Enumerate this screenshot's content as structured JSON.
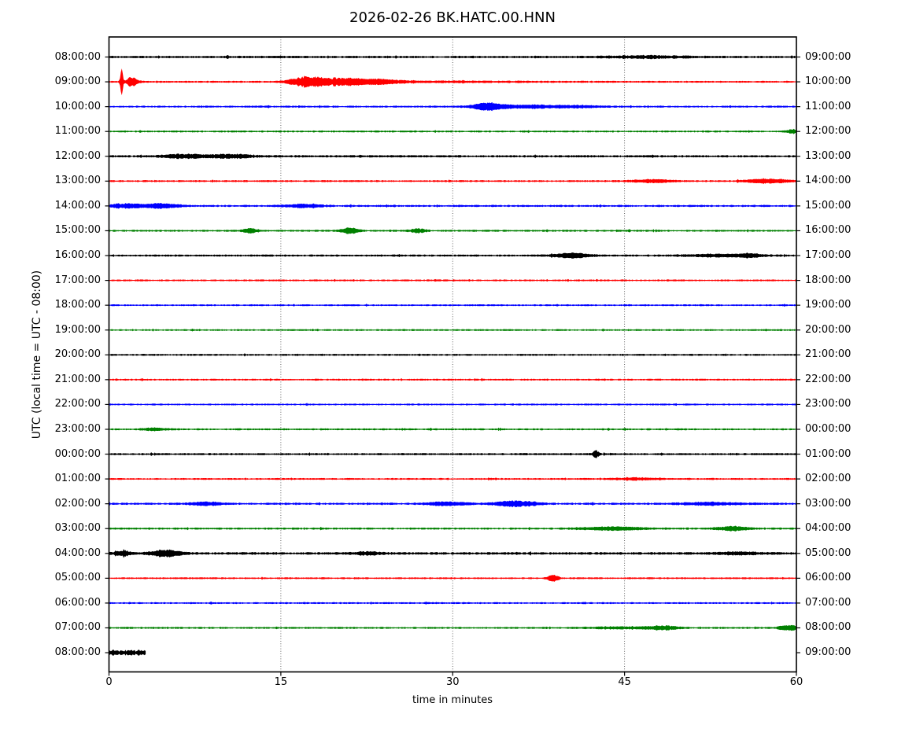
{
  "title": "2026-02-26 BK.HATC.00.HNN",
  "axes": {
    "xlabel": "time in minutes",
    "ylabel": "UTC (local time = UTC - 08:00)",
    "x_ticks": [
      0,
      15,
      30,
      45,
      60
    ],
    "x_grid": [
      15,
      30,
      45
    ],
    "x_range": [
      0,
      60
    ]
  },
  "colors": {
    "black": "#000000",
    "red": "#ff0000",
    "blue": "#0000ff",
    "green": "#008000"
  },
  "chart_data": {
    "type": "line",
    "subtype": "helicorder-dayplot",
    "title": "2026-02-26 BK.HATC.00.HNN",
    "x_unit": "minutes",
    "x_range": [
      0,
      60
    ],
    "interval_minutes": 60,
    "rows": [
      {
        "left_label": "08:00:00",
        "right_label": "09:00:00",
        "color": "black",
        "base": 1.1,
        "end_min": 60,
        "events": [
          {
            "m": 47,
            "w": 3.5,
            "a": 1.1
          }
        ]
      },
      {
        "left_label": "09:00:00",
        "right_label": "10:00:00",
        "color": "red",
        "base": 0.9,
        "end_min": 60,
        "events": [
          {
            "m": 1.1,
            "w": 0.12,
            "a": 15
          },
          {
            "m": 2.0,
            "w": 0.5,
            "a": 4.5
          },
          {
            "m": 17.3,
            "w": 1.6,
            "a": 4.2
          },
          {
            "m": 20.5,
            "w": 2.8,
            "a": 3.2
          },
          {
            "m": 24,
            "w": 2,
            "a": 1.5
          },
          {
            "m": 30,
            "w": 8,
            "a": 0.4
          }
        ]
      },
      {
        "left_label": "10:00:00",
        "right_label": "11:00:00",
        "color": "blue",
        "base": 0.9,
        "end_min": 60,
        "events": [
          {
            "m": 33,
            "w": 1.4,
            "a": 3.2
          },
          {
            "m": 36.5,
            "w": 3.5,
            "a": 1.4
          },
          {
            "m": 41,
            "w": 2,
            "a": 0.8
          }
        ]
      },
      {
        "left_label": "11:00:00",
        "right_label": "12:00:00",
        "color": "green",
        "base": 0.9,
        "end_min": 60,
        "events": [
          {
            "m": 59.8,
            "w": 0.8,
            "a": 1.4
          }
        ]
      },
      {
        "left_label": "12:00:00",
        "right_label": "13:00:00",
        "color": "black",
        "base": 1.1,
        "end_min": 60,
        "events": [
          {
            "m": 6.5,
            "w": 1.8,
            "a": 1.8
          },
          {
            "m": 10.5,
            "w": 2,
            "a": 1.8
          }
        ]
      },
      {
        "left_label": "13:00:00",
        "right_label": "14:00:00",
        "color": "red",
        "base": 0.9,
        "end_min": 60,
        "events": [
          {
            "m": 47.5,
            "w": 1.8,
            "a": 1.4
          },
          {
            "m": 57.5,
            "w": 1.8,
            "a": 2.2
          }
        ]
      },
      {
        "left_label": "14:00:00",
        "right_label": "15:00:00",
        "color": "blue",
        "base": 1.0,
        "end_min": 60,
        "events": [
          {
            "m": 1.5,
            "w": 1.5,
            "a": 2.2
          },
          {
            "m": 4.5,
            "w": 1.5,
            "a": 2.0
          },
          {
            "m": 17,
            "w": 1.5,
            "a": 1.6
          }
        ]
      },
      {
        "left_label": "15:00:00",
        "right_label": "16:00:00",
        "color": "green",
        "base": 0.9,
        "end_min": 60,
        "events": [
          {
            "m": 12.3,
            "w": 0.6,
            "a": 2.4
          },
          {
            "m": 21,
            "w": 0.8,
            "a": 2.8
          },
          {
            "m": 27,
            "w": 0.7,
            "a": 1.9
          }
        ]
      },
      {
        "left_label": "16:00:00",
        "right_label": "17:00:00",
        "color": "black",
        "base": 1.0,
        "end_min": 60,
        "events": [
          {
            "m": 40.5,
            "w": 1.5,
            "a": 2.3
          },
          {
            "m": 53,
            "w": 3,
            "a": 1.2
          },
          {
            "m": 56,
            "w": 1.2,
            "a": 1.5
          }
        ]
      },
      {
        "left_label": "17:00:00",
        "right_label": "18:00:00",
        "color": "red",
        "base": 0.85,
        "end_min": 60,
        "events": []
      },
      {
        "left_label": "18:00:00",
        "right_label": "19:00:00",
        "color": "blue",
        "base": 0.85,
        "end_min": 60,
        "events": []
      },
      {
        "left_label": "19:00:00",
        "right_label": "20:00:00",
        "color": "green",
        "base": 0.85,
        "end_min": 60,
        "events": []
      },
      {
        "left_label": "20:00:00",
        "right_label": "21:00:00",
        "color": "black",
        "base": 0.9,
        "end_min": 60,
        "events": []
      },
      {
        "left_label": "21:00:00",
        "right_label": "22:00:00",
        "color": "red",
        "base": 0.85,
        "end_min": 60,
        "events": []
      },
      {
        "left_label": "22:00:00",
        "right_label": "23:00:00",
        "color": "blue",
        "base": 0.85,
        "end_min": 60,
        "events": []
      },
      {
        "left_label": "23:00:00",
        "right_label": "00:00:00",
        "color": "green",
        "base": 0.9,
        "end_min": 60,
        "events": [
          {
            "m": 4,
            "w": 1,
            "a": 1.2
          }
        ]
      },
      {
        "left_label": "00:00:00",
        "right_label": "01:00:00",
        "color": "black",
        "base": 1.0,
        "end_min": 60,
        "events": [
          {
            "m": 42.5,
            "w": 0.3,
            "a": 3.3
          }
        ]
      },
      {
        "left_label": "01:00:00",
        "right_label": "02:00:00",
        "color": "red",
        "base": 0.85,
        "end_min": 60,
        "events": [
          {
            "m": 46,
            "w": 2,
            "a": 1.0
          }
        ]
      },
      {
        "left_label": "02:00:00",
        "right_label": "03:00:00",
        "color": "blue",
        "base": 1.0,
        "end_min": 60,
        "events": [
          {
            "m": 8.5,
            "w": 1.4,
            "a": 1.6
          },
          {
            "m": 29.5,
            "w": 2,
            "a": 1.6
          },
          {
            "m": 35.5,
            "w": 1.8,
            "a": 2.8
          },
          {
            "m": 52.5,
            "w": 3,
            "a": 1.2
          }
        ]
      },
      {
        "left_label": "03:00:00",
        "right_label": "04:00:00",
        "color": "green",
        "base": 0.95,
        "end_min": 60,
        "events": [
          {
            "m": 44,
            "w": 3,
            "a": 1.5
          },
          {
            "m": 54.5,
            "w": 1.4,
            "a": 2.0
          }
        ]
      },
      {
        "left_label": "04:00:00",
        "right_label": "05:00:00",
        "color": "black",
        "base": 1.2,
        "end_min": 60,
        "events": [
          {
            "m": 1.2,
            "w": 0.7,
            "a": 2.2
          },
          {
            "m": 5,
            "w": 1.4,
            "a": 3.0
          },
          {
            "m": 22.5,
            "w": 1.2,
            "a": 1.2
          },
          {
            "m": 55,
            "w": 2,
            "a": 1.1
          }
        ]
      },
      {
        "left_label": "05:00:00",
        "right_label": "06:00:00",
        "color": "red",
        "base": 0.85,
        "end_min": 60,
        "events": [
          {
            "m": 38.8,
            "w": 0.45,
            "a": 3.3
          }
        ]
      },
      {
        "left_label": "06:00:00",
        "right_label": "07:00:00",
        "color": "blue",
        "base": 0.85,
        "end_min": 60,
        "events": []
      },
      {
        "left_label": "07:00:00",
        "right_label": "08:00:00",
        "color": "green",
        "base": 0.9,
        "end_min": 60,
        "events": [
          {
            "m": 45,
            "w": 3,
            "a": 0.9
          },
          {
            "m": 48.5,
            "w": 1.2,
            "a": 1.8
          },
          {
            "m": 59.3,
            "w": 0.9,
            "a": 2.3
          }
        ]
      },
      {
        "left_label": "08:00:00",
        "right_label": "09:00:00",
        "color": "black",
        "base": 2.6,
        "end_min": 3.2,
        "events": []
      }
    ]
  }
}
